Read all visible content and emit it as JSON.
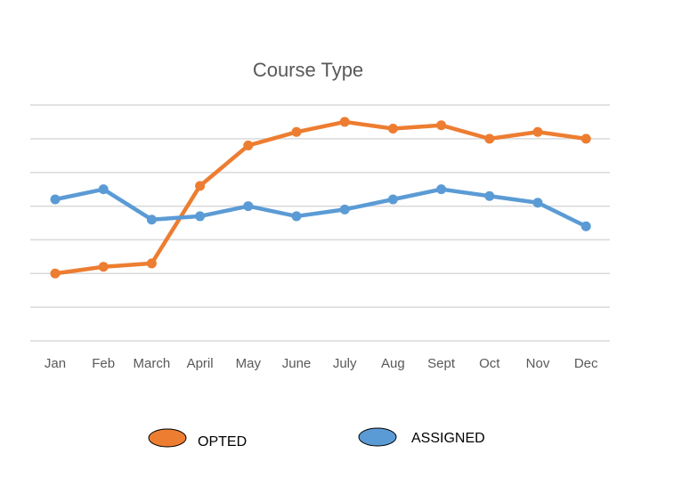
{
  "chart_data": {
    "type": "line",
    "title": "Course Type",
    "categories": [
      "Jan",
      "Feb",
      "March",
      "April",
      "May",
      "June",
      "July",
      "Aug",
      "Sept",
      "Oct",
      "Nov",
      "Dec"
    ],
    "series": [
      {
        "name": "OPTED",
        "color": "#ed7d31",
        "values": [
          2.0,
          2.2,
          2.3,
          4.6,
          5.8,
          6.2,
          6.5,
          6.3,
          6.4,
          6.0,
          6.2,
          6.0
        ]
      },
      {
        "name": "ASSIGNED",
        "color": "#5b9bd5",
        "values": [
          4.2,
          4.5,
          3.6,
          3.7,
          4.0,
          3.7,
          3.9,
          4.2,
          4.5,
          4.3,
          4.1,
          3.4
        ]
      }
    ],
    "ylim": [
      0,
      7
    ],
    "gridlines": 7,
    "grid": true,
    "y_tick_labels_shown": false,
    "legend_position": "bottom",
    "xlabel": "",
    "ylabel": ""
  }
}
